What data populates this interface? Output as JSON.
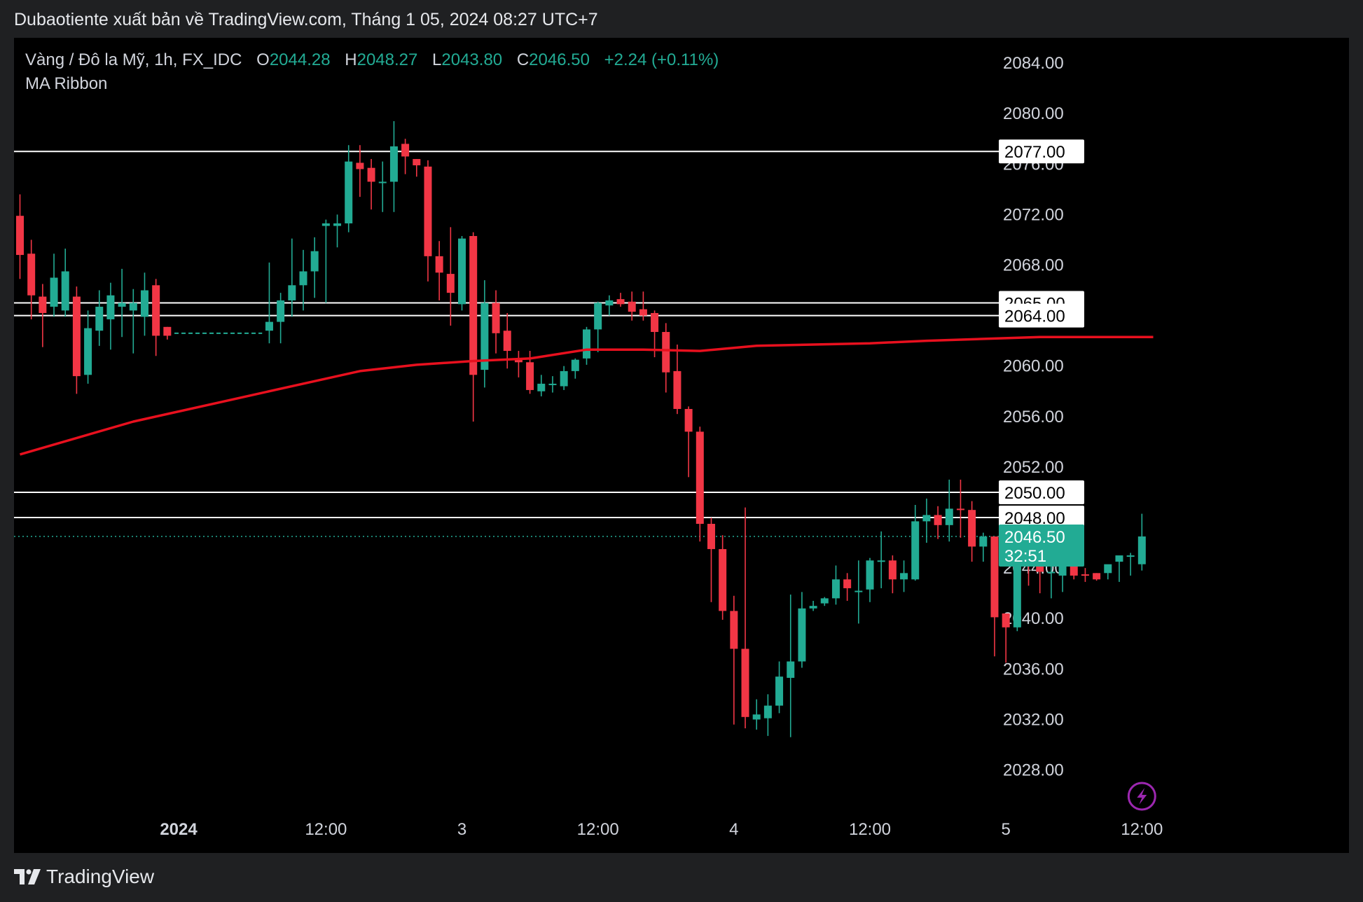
{
  "header": {
    "attribution": "Dubaotiente xuất bản về TradingView.com, Tháng 1 05, 2024 08:27 UTC+7"
  },
  "legend": {
    "symbol": "Vàng / Đô la Mỹ, 1h, FX_IDC",
    "open_label": "O",
    "open": "2044.28",
    "high_label": "H",
    "high": "2048.27",
    "low_label": "L",
    "low": "2043.80",
    "close_label": "C",
    "close": "2046.50",
    "change": "+2.24 (+0.11%)",
    "indicator": "MA Ribbon"
  },
  "footer": {
    "brand": "TradingView"
  },
  "chart_data": {
    "type": "candlestick",
    "symbol": "Vàng / Đô la Mỹ, 1h, FX_IDC",
    "timeframe": "1h",
    "colors": {
      "up": "#22ab94",
      "down": "#f23645",
      "ma": "#e8101e",
      "price_tag": "#22ab94",
      "line": "#ffffff"
    },
    "y_ticks": [
      "2084.00",
      "2080.00",
      "2076.00",
      "2072.00",
      "2068.00",
      "2064.00",
      "2060.00",
      "2056.00",
      "2052.00",
      "2048.00",
      "2044.00",
      "2040.00",
      "2036.00",
      "2032.00",
      "2028.00"
    ],
    "ylim": [
      2025.2,
      2086.0
    ],
    "x_ticks": [
      {
        "label": "2024",
        "i": 14,
        "bold": true
      },
      {
        "label": "12:00",
        "i": 27
      },
      {
        "label": "3",
        "i": 39
      },
      {
        "label": "12:00",
        "i": 51
      },
      {
        "label": "4",
        "i": 63
      },
      {
        "label": "12:00",
        "i": 75
      },
      {
        "label": "5",
        "i": 87
      },
      {
        "label": "12:00",
        "i": 99
      }
    ],
    "candles": [
      [
        2071.9,
        2073.6,
        2066.9,
        2068.8
      ],
      [
        2068.9,
        2070.0,
        2063.7,
        2065.6
      ],
      [
        2065.5,
        2066.5,
        2061.5,
        2064.2
      ],
      [
        2064.7,
        2068.9,
        2063.9,
        2067.0
      ],
      [
        2064.4,
        2069.3,
        2063.9,
        2067.5
      ],
      [
        2065.5,
        2066.3,
        2057.8,
        2059.2
      ],
      [
        2059.3,
        2064.4,
        2058.6,
        2063.0
      ],
      [
        2062.8,
        2066.0,
        2061.6,
        2064.7
      ],
      [
        2063.7,
        2066.6,
        2061.3,
        2065.6
      ],
      [
        2064.7,
        2067.7,
        2062.3,
        2065.0
      ],
      [
        2064.4,
        2066.1,
        2061.0,
        2065.0
      ],
      [
        2063.9,
        2067.4,
        2062.4,
        2066.0
      ],
      [
        2066.4,
        2066.9,
        2060.8,
        2062.4
      ],
      [
        2063.1,
        2063.1,
        2062.1,
        2062.4
      ],
      [
        2062.6,
        2062.6,
        2062.6,
        2062.6
      ],
      [
        2062.6,
        2062.6,
        2062.6,
        2062.6
      ],
      [
        2062.6,
        2062.6,
        2062.6,
        2062.6
      ],
      [
        2062.6,
        2062.6,
        2062.6,
        2062.6
      ],
      [
        2062.6,
        2062.6,
        2062.6,
        2062.6
      ],
      [
        2062.6,
        2062.6,
        2062.6,
        2062.6
      ],
      [
        2062.6,
        2062.6,
        2062.6,
        2062.6
      ],
      [
        2062.6,
        2062.6,
        2062.6,
        2062.6
      ],
      [
        2062.8,
        2068.2,
        2061.8,
        2063.5
      ],
      [
        2063.5,
        2065.8,
        2061.8,
        2065.2
      ],
      [
        2065.2,
        2070.1,
        2063.9,
        2066.4
      ],
      [
        2066.4,
        2069.2,
        2064.4,
        2067.5
      ],
      [
        2067.5,
        2070.2,
        2065.4,
        2069.1
      ],
      [
        2071.1,
        2071.6,
        2065.0,
        2071.3
      ],
      [
        2071.1,
        2072.0,
        2069.4,
        2071.3
      ],
      [
        2071.3,
        2077.5,
        2070.6,
        2076.2
      ],
      [
        2076.1,
        2077.5,
        2073.4,
        2075.6
      ],
      [
        2075.7,
        2076.4,
        2072.4,
        2074.6
      ],
      [
        2074.5,
        2076.2,
        2072.2,
        2074.6
      ],
      [
        2074.6,
        2079.4,
        2072.2,
        2077.4
      ],
      [
        2077.6,
        2078.0,
        2075.2,
        2076.6
      ],
      [
        2076.4,
        2076.4,
        2075.0,
        2075.9
      ],
      [
        2075.8,
        2076.3,
        2066.7,
        2068.7
      ],
      [
        2068.7,
        2069.9,
        2065.2,
        2067.4
      ],
      [
        2067.3,
        2071.0,
        2063.2,
        2065.8
      ],
      [
        2064.9,
        2070.3,
        2064.4,
        2070.1
      ],
      [
        2070.3,
        2070.6,
        2055.6,
        2059.3
      ],
      [
        2059.7,
        2066.8,
        2058.3,
        2065.0
      ],
      [
        2065.0,
        2066.0,
        2061.0,
        2062.6
      ],
      [
        2062.8,
        2064.2,
        2059.8,
        2061.2
      ],
      [
        2060.6,
        2061.2,
        2059.1,
        2060.3
      ],
      [
        2060.3,
        2061.2,
        2057.8,
        2058.1
      ],
      [
        2058.0,
        2059.3,
        2057.6,
        2058.6
      ],
      [
        2058.6,
        2059.2,
        2057.9,
        2058.6
      ],
      [
        2058.4,
        2060.0,
        2058.1,
        2059.6
      ],
      [
        2059.6,
        2060.6,
        2059.0,
        2060.5
      ],
      [
        2060.6,
        2063.1,
        2060.1,
        2062.9
      ],
      [
        2062.9,
        2065.1,
        2061.1,
        2065.0
      ],
      [
        2064.8,
        2065.6,
        2064.0,
        2065.2
      ],
      [
        2065.3,
        2065.8,
        2064.7,
        2064.9
      ],
      [
        2065.1,
        2065.9,
        2063.6,
        2064.3
      ],
      [
        2064.5,
        2065.9,
        2063.6,
        2064.0
      ],
      [
        2064.2,
        2064.4,
        2060.7,
        2062.7
      ],
      [
        2062.7,
        2063.4,
        2057.9,
        2059.5
      ],
      [
        2059.6,
        2061.7,
        2056.2,
        2056.6
      ],
      [
        2056.6,
        2056.8,
        2051.2,
        2054.8
      ],
      [
        2054.8,
        2055.2,
        2046.1,
        2047.5
      ],
      [
        2047.5,
        2048.0,
        2041.3,
        2045.5
      ],
      [
        2045.5,
        2046.6,
        2039.9,
        2040.6
      ],
      [
        2040.6,
        2041.8,
        2031.6,
        2037.6
      ],
      [
        2037.6,
        2048.8,
        2031.3,
        2032.2
      ],
      [
        2032.0,
        2033.6,
        2031.2,
        2032.4
      ],
      [
        2032.1,
        2034.0,
        2030.7,
        2033.1
      ],
      [
        2033.1,
        2036.6,
        2032.5,
        2035.4
      ],
      [
        2035.3,
        2041.9,
        2030.6,
        2036.6
      ],
      [
        2036.6,
        2042.1,
        2036.1,
        2040.8
      ],
      [
        2040.8,
        2041.4,
        2040.6,
        2041.0
      ],
      [
        2041.2,
        2041.7,
        2041.0,
        2041.6
      ],
      [
        2041.6,
        2044.2,
        2041.1,
        2043.1
      ],
      [
        2043.1,
        2043.6,
        2041.4,
        2042.4
      ],
      [
        2042.2,
        2044.6,
        2039.6,
        2042.2
      ],
      [
        2042.3,
        2044.8,
        2041.3,
        2044.6
      ],
      [
        2044.6,
        2046.9,
        2042.4,
        2044.6
      ],
      [
        2044.6,
        2045.0,
        2042.0,
        2043.1
      ],
      [
        2043.1,
        2044.6,
        2042.1,
        2043.6
      ],
      [
        2043.1,
        2049.0,
        2043.0,
        2047.7
      ],
      [
        2047.7,
        2049.5,
        2046.0,
        2048.2
      ],
      [
        2048.2,
        2048.9,
        2046.3,
        2047.4
      ],
      [
        2047.4,
        2051.0,
        2046.1,
        2048.7
      ],
      [
        2048.7,
        2051.0,
        2046.4,
        2048.6
      ],
      [
        2048.6,
        2049.3,
        2044.5,
        2045.7
      ],
      [
        2045.7,
        2046.8,
        2044.5,
        2046.5
      ],
      [
        2046.5,
        2046.5,
        2037.0,
        2040.1
      ],
      [
        2040.4,
        2040.4,
        2036.5,
        2039.3
      ],
      [
        2039.3,
        2048.3,
        2039.0,
        2045.9
      ],
      [
        2045.6,
        2046.7,
        2042.6,
        2045.2
      ],
      [
        2045.2,
        2045.8,
        2042.0,
        2043.7
      ],
      [
        2043.7,
        2045.4,
        2041.6,
        2043.7
      ],
      [
        2043.4,
        2044.8,
        2042.1,
        2044.6
      ],
      [
        2044.6,
        2045.4,
        2043.1,
        2043.4
      ],
      [
        2043.5,
        2044.0,
        2042.9,
        2043.4
      ],
      [
        2043.6,
        2043.6,
        2043.0,
        2043.1
      ],
      [
        2043.6,
        2044.2,
        2043.1,
        2044.3
      ],
      [
        2044.5,
        2044.6,
        2042.9,
        2045.0
      ],
      [
        2045.0,
        2045.2,
        2043.4,
        2045.0
      ],
      [
        2044.3,
        2048.3,
        2043.8,
        2046.5
      ]
    ],
    "ma_line": [
      [
        0,
        2053.0
      ],
      [
        10,
        2055.6
      ],
      [
        20,
        2057.6
      ],
      [
        30,
        2059.6
      ],
      [
        35,
        2060.1
      ],
      [
        40,
        2060.4
      ],
      [
        45,
        2060.6
      ],
      [
        50,
        2061.3
      ],
      [
        55,
        2061.3
      ],
      [
        60,
        2061.2
      ],
      [
        65,
        2061.6
      ],
      [
        70,
        2061.7
      ],
      [
        75,
        2061.8
      ],
      [
        80,
        2062.0
      ],
      [
        90,
        2062.3
      ],
      [
        96,
        2062.3
      ],
      [
        99,
        2062.3
      ],
      [
        100,
        2062.3
      ]
    ],
    "horizontal_lines": [
      {
        "price": 2077.0,
        "label": "2077.00"
      },
      {
        "price": 2065.0,
        "label": "2065.00"
      },
      {
        "price": 2064.0,
        "label": "2064.00"
      },
      {
        "price": 2050.0,
        "label": "2050.00"
      },
      {
        "price": 2048.0,
        "label": "2048.00"
      }
    ],
    "last_price": {
      "price": 2046.5,
      "label": "2046.50",
      "countdown": "32:51"
    },
    "grid": false
  }
}
